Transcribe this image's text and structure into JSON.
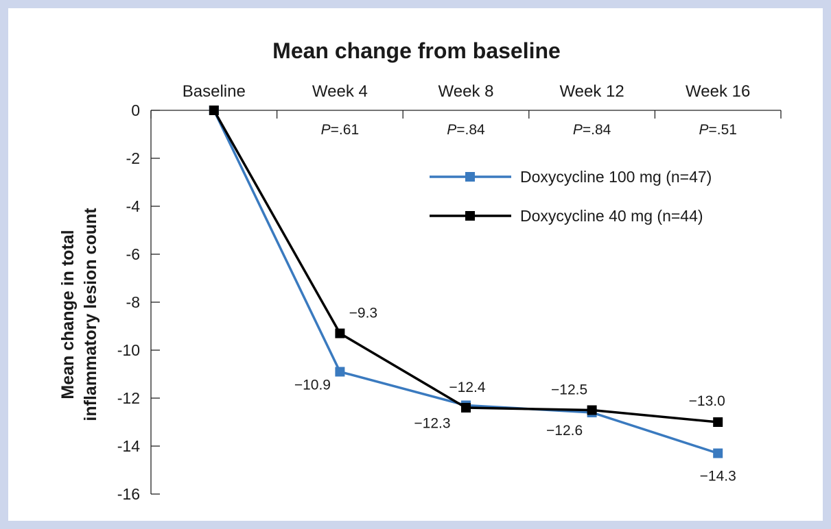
{
  "chart_data": {
    "type": "line",
    "title": "Mean change from baseline",
    "ylabel_lines": [
      "Mean change in total",
      "inflammatory lesion count"
    ],
    "categories": [
      "Baseline",
      "Week 4",
      "Week 8",
      "Week 12",
      "Week 16"
    ],
    "p_values": [
      {
        "category": "Week 4",
        "italic": "P",
        "rest": "=.61"
      },
      {
        "category": "Week 8",
        "italic": "P",
        "rest": "=.84"
      },
      {
        "category": "Week 12",
        "italic": "P",
        "rest": "=.84"
      },
      {
        "category": "Week 16",
        "italic": "P",
        "rest": "=.51"
      }
    ],
    "ylim": [
      -16,
      0
    ],
    "yticks": [
      "0",
      "-2",
      "-4",
      "-6",
      "-8",
      "-10",
      "-12",
      "-14",
      "-16"
    ],
    "ytick_values": [
      0,
      -2,
      -4,
      -6,
      -8,
      -10,
      -12,
      -14,
      -16
    ],
    "legend_position": "top-right",
    "series": [
      {
        "name": "Doxycycline 100 mg (n=47)",
        "color": "#3a7abf",
        "values": [
          0,
          -10.9,
          -12.3,
          -12.6,
          -14.3
        ],
        "labels": [
          "",
          "−10.9",
          "−12.3",
          "−12.6",
          "−14.3"
        ]
      },
      {
        "name": "Doxycycline 40 mg (n=44)",
        "color": "#000000",
        "values": [
          0,
          -9.3,
          -12.4,
          -12.5,
          -13.0
        ],
        "labels": [
          "",
          "−9.3",
          "−12.4",
          "−12.5",
          "−13.0"
        ]
      }
    ]
  }
}
